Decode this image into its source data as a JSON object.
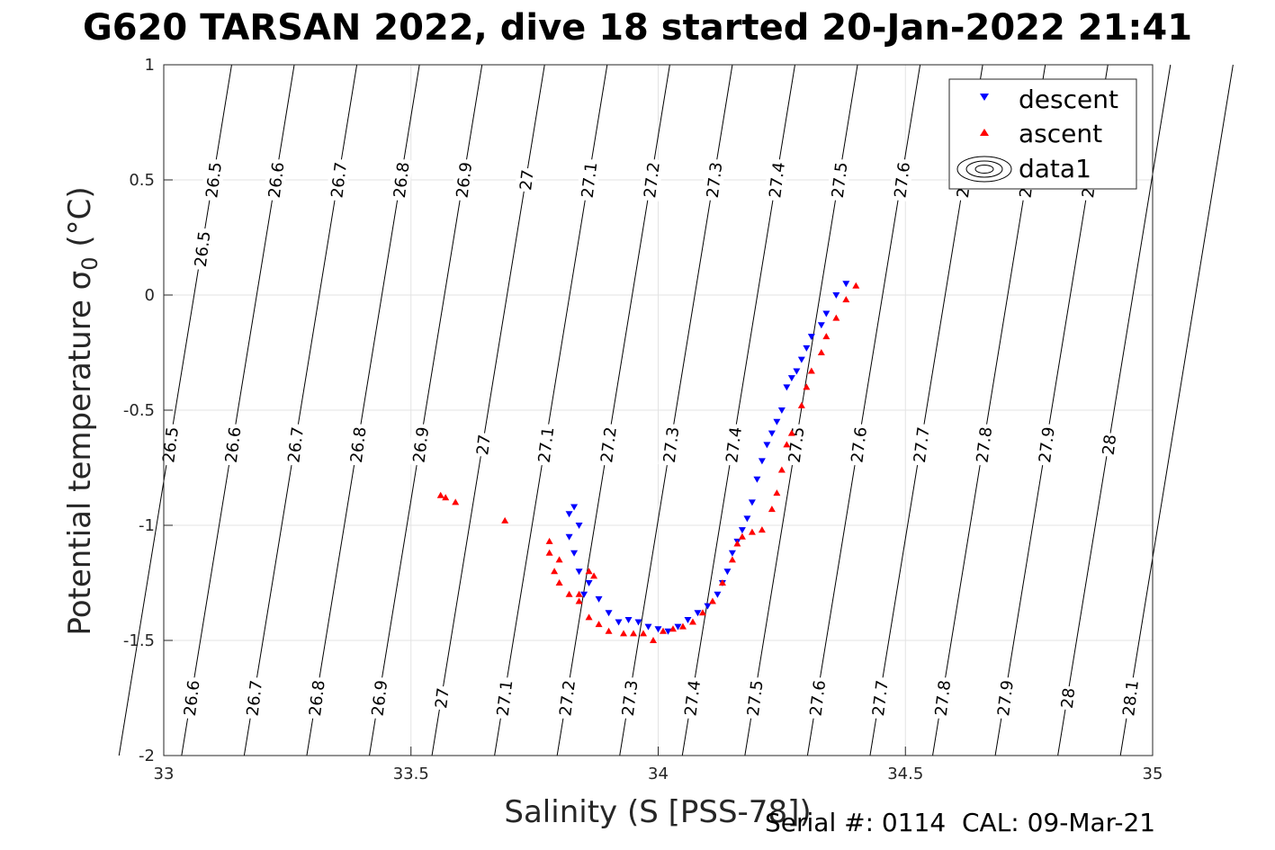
{
  "chart_data": {
    "type": "scatter",
    "title": "G620 TARSAN 2022, dive 18 started 20-Jan-2022 21:41",
    "xlabel": "Salinity (S [PSS-78])",
    "ylabel": "Potential temperature σ",
    "ylabel_sub": "0",
    "ylabel_unit": " (°C)",
    "xlim": [
      33,
      35
    ],
    "ylim": [
      -2,
      1
    ],
    "xticks": [
      "33",
      "33.5",
      "34",
      "34.5",
      "35"
    ],
    "yticks": [
      "1",
      "0.5",
      "0",
      "-0.5",
      "-1",
      "-1.5",
      "-2"
    ],
    "grid": true,
    "legend_position": "top-right",
    "legend": [
      "descent",
      "ascent",
      "data1"
    ],
    "contours": {
      "levels": [
        "26.5",
        "26.6",
        "26.7",
        "26.8",
        "26.9",
        "27",
        "27.1",
        "27.2",
        "27.3",
        "27.4",
        "27.5",
        "27.6",
        "27.7",
        "27.8",
        "27.9",
        "28",
        "28.1"
      ]
    },
    "series": [
      {
        "name": "descent",
        "color": "#0000ff",
        "marker": "triangle-down",
        "points": [
          [
            34.38,
            0.05
          ],
          [
            34.36,
            0.0
          ],
          [
            34.34,
            -0.08
          ],
          [
            34.33,
            -0.13
          ],
          [
            34.31,
            -0.18
          ],
          [
            34.3,
            -0.23
          ],
          [
            34.29,
            -0.28
          ],
          [
            34.28,
            -0.33
          ],
          [
            34.27,
            -0.36
          ],
          [
            34.26,
            -0.4
          ],
          [
            34.25,
            -0.5
          ],
          [
            34.24,
            -0.55
          ],
          [
            34.23,
            -0.6
          ],
          [
            34.22,
            -0.65
          ],
          [
            34.21,
            -0.72
          ],
          [
            34.2,
            -0.8
          ],
          [
            34.19,
            -0.9
          ],
          [
            34.18,
            -0.97
          ],
          [
            34.17,
            -1.02
          ],
          [
            34.16,
            -1.07
          ],
          [
            34.15,
            -1.12
          ],
          [
            34.14,
            -1.2
          ],
          [
            34.13,
            -1.25
          ],
          [
            34.12,
            -1.3
          ],
          [
            34.1,
            -1.35
          ],
          [
            34.08,
            -1.38
          ],
          [
            34.06,
            -1.41
          ],
          [
            34.04,
            -1.44
          ],
          [
            34.02,
            -1.46
          ],
          [
            34.0,
            -1.45
          ],
          [
            33.98,
            -1.44
          ],
          [
            33.96,
            -1.42
          ],
          [
            33.94,
            -1.41
          ],
          [
            33.92,
            -1.42
          ],
          [
            33.9,
            -1.38
          ],
          [
            33.88,
            -1.32
          ],
          [
            33.86,
            -1.25
          ],
          [
            33.85,
            -1.3
          ],
          [
            33.84,
            -1.2
          ],
          [
            33.83,
            -1.12
          ],
          [
            33.82,
            -1.05
          ],
          [
            33.82,
            -0.95
          ],
          [
            33.83,
            -0.92
          ],
          [
            33.84,
            -1.0
          ]
        ]
      },
      {
        "name": "ascent",
        "color": "#ff0000",
        "marker": "triangle-up",
        "points": [
          [
            34.4,
            0.04
          ],
          [
            34.38,
            -0.02
          ],
          [
            34.36,
            -0.1
          ],
          [
            34.34,
            -0.18
          ],
          [
            34.33,
            -0.25
          ],
          [
            34.31,
            -0.33
          ],
          [
            34.3,
            -0.4
          ],
          [
            34.29,
            -0.48
          ],
          [
            34.27,
            -0.6
          ],
          [
            34.26,
            -0.65
          ],
          [
            34.25,
            -0.76
          ],
          [
            34.24,
            -0.86
          ],
          [
            34.23,
            -0.93
          ],
          [
            34.21,
            -1.02
          ],
          [
            34.19,
            -1.03
          ],
          [
            34.17,
            -1.05
          ],
          [
            34.16,
            -1.08
          ],
          [
            34.15,
            -1.15
          ],
          [
            34.13,
            -1.25
          ],
          [
            34.11,
            -1.33
          ],
          [
            34.09,
            -1.38
          ],
          [
            34.07,
            -1.42
          ],
          [
            34.05,
            -1.44
          ],
          [
            34.03,
            -1.45
          ],
          [
            34.01,
            -1.46
          ],
          [
            33.99,
            -1.5
          ],
          [
            33.97,
            -1.47
          ],
          [
            33.95,
            -1.47
          ],
          [
            33.93,
            -1.47
          ],
          [
            33.9,
            -1.46
          ],
          [
            33.88,
            -1.43
          ],
          [
            33.86,
            -1.4
          ],
          [
            33.84,
            -1.33
          ],
          [
            33.82,
            -1.3
          ],
          [
            33.8,
            -1.25
          ],
          [
            33.79,
            -1.2
          ],
          [
            33.78,
            -1.12
          ],
          [
            33.78,
            -1.07
          ],
          [
            33.8,
            -1.15
          ],
          [
            33.84,
            -1.3
          ],
          [
            33.86,
            -1.2
          ],
          [
            33.87,
            -1.22
          ],
          [
            33.56,
            -0.87
          ],
          [
            33.57,
            -0.88
          ],
          [
            33.59,
            -0.9
          ],
          [
            33.69,
            -0.98
          ]
        ]
      }
    ]
  },
  "footer": "Serial #: 0114  CAL: 09-Mar-21"
}
